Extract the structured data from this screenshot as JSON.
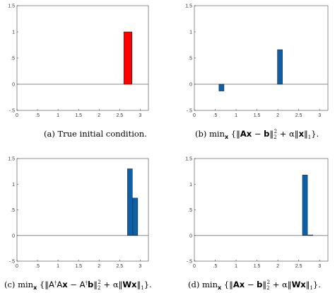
{
  "chart_data": [
    {
      "type": "bar",
      "title": "",
      "xlabel": "",
      "ylabel": "",
      "xlim": [
        0,
        3.2
      ],
      "ylim": [
        -0.5,
        1.5
      ],
      "xticks": [
        0,
        0.5,
        1,
        1.5,
        2,
        2.5,
        3
      ],
      "yticks": [
        -0.5,
        0,
        0.5,
        1,
        1.5
      ],
      "color": "#ff0000",
      "bar_width": 0.2,
      "bars": [
        {
          "x": 2.7,
          "value": 1.0
        }
      ],
      "caption": "(a) True initial condition."
    },
    {
      "type": "bar",
      "title": "",
      "xlabel": "",
      "ylabel": "",
      "xlim": [
        0,
        3.2
      ],
      "ylim": [
        -0.5,
        1.5
      ],
      "xticks": [
        0,
        0.5,
        1,
        1.5,
        2,
        2.5,
        3
      ],
      "yticks": [
        -0.5,
        0,
        0.5,
        1,
        1.5
      ],
      "color": "#0f5fa6",
      "bar_width": 0.12,
      "bars": [
        {
          "x": 0.65,
          "value": -0.13
        },
        {
          "x": 2.05,
          "value": 0.66
        }
      ],
      "caption": "(b) min_x {‖Ax − b‖₂² + α‖x‖₁}."
    },
    {
      "type": "bar",
      "title": "",
      "xlabel": "",
      "ylabel": "",
      "xlim": [
        0,
        3.2
      ],
      "ylim": [
        -0.5,
        1.5
      ],
      "xticks": [
        0,
        0.5,
        1,
        1.5,
        2,
        2.5,
        3
      ],
      "yticks": [
        -0.5,
        0,
        0.5,
        1,
        1.5
      ],
      "color": "#0f5fa6",
      "bar_width": 0.12,
      "bars": [
        {
          "x": 2.75,
          "value": 1.3
        },
        {
          "x": 2.88,
          "value": 0.73
        }
      ],
      "caption": "(c) min_x {‖A†Ax − A†b‖₂² + α‖Wx‖₁}."
    },
    {
      "type": "bar",
      "title": "",
      "xlabel": "",
      "ylabel": "",
      "xlim": [
        0,
        3.2
      ],
      "ylim": [
        -0.5,
        1.5
      ],
      "xticks": [
        0,
        0.5,
        1,
        1.5,
        2,
        2.5,
        3
      ],
      "yticks": [
        -0.5,
        0,
        0.5,
        1,
        1.5
      ],
      "color": "#0f5fa6",
      "bar_width": 0.12,
      "bars": [
        {
          "x": 2.65,
          "value": 1.18
        },
        {
          "x": 2.78,
          "value": 0.01
        }
      ],
      "caption": "(d) min_x {‖Ax − b‖₂² + α‖Wx‖₁}."
    }
  ]
}
